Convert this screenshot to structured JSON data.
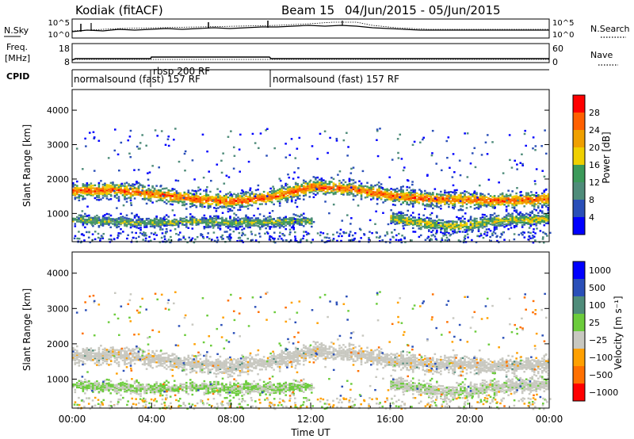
{
  "header": {
    "station": "Kodiak (fitACF)",
    "beam": "Beam 15",
    "dates": "04/Jun/2015 - 05/Jun/2015"
  },
  "nsky_panel": {
    "label": "N.Sky",
    "left_ticks": [
      "10^5",
      "10^0"
    ],
    "right_ticks": [
      "10^5",
      "10^0"
    ],
    "right_label": "N.Search"
  },
  "freq_panel": {
    "label_line1": "Freq.",
    "label_line2": "[MHz]",
    "left_ticks": [
      "18",
      "8"
    ],
    "right_ticks": [
      "60",
      "0"
    ],
    "right_label": "Nave"
  },
  "cpid_panel": {
    "label": "CPID",
    "segments": [
      {
        "text": "normalsound (fast) 157 RF",
        "start_hour": 0,
        "end_hour": 4
      },
      {
        "text": "rbsp 200 RF",
        "start_hour": 4,
        "end_hour": 10
      },
      {
        "text": "normalsound (fast) 157 RF",
        "start_hour": 10,
        "end_hour": 24
      }
    ]
  },
  "colors": {
    "power_scale": [
      "#0000ff",
      "#2a4fb8",
      "#4f8c7a",
      "#3c9a5a",
      "#f0d000",
      "#f0a000",
      "#ff6000",
      "#ff0000"
    ],
    "velocity_scale": [
      "#0000ff",
      "#2a4fb8",
      "#4f8c7a",
      "#6ccc3c",
      "#c8c8c0",
      "#ffa000",
      "#ff7000",
      "#ff0000"
    ]
  },
  "chart_data": [
    {
      "type": "heatmap",
      "panel": "power",
      "ylabel": "Slant Range [km]",
      "xlabel": "",
      "x_range_hours": [
        0,
        24
      ],
      "ylim": [
        180,
        4600
      ],
      "y_ticks": [
        1000,
        2000,
        3000,
        4000
      ],
      "colorbar": {
        "label": "Power [dB]",
        "ticks": [
          "28",
          "24",
          "20",
          "16",
          "12",
          "8",
          "4"
        ]
      },
      "bands": [
        {
          "name": "",
          "x": [
            0,
            2,
            4,
            6,
            8,
            10,
            12,
            14,
            16,
            18,
            20,
            22,
            24
          ],
          "center_km": [
            1680,
            1720,
            1600,
            1450,
            1380,
            1500,
            1800,
            1750,
            1550,
            1450,
            1420,
            1400,
            1450
          ],
          "width_km": 300,
          "intensity": 0.85
        },
        {
          "name": "",
          "x": [
            0,
            1,
            2,
            3,
            4,
            5,
            6,
            7,
            8,
            9,
            10,
            11,
            12
          ],
          "center_km": [
            850,
            820,
            800,
            780,
            760,
            760,
            800,
            780,
            760,
            780,
            780,
            800,
            820
          ],
          "width_km": 220,
          "intensity": 0.45
        },
        {
          "name": "",
          "x": [
            16,
            17,
            18,
            19,
            20,
            21,
            22,
            23,
            24
          ],
          "center_km": [
            900,
            800,
            720,
            650,
            700,
            800,
            850,
            850,
            900
          ],
          "width_km": 260,
          "intensity": 0.55
        }
      ]
    },
    {
      "type": "heatmap",
      "panel": "velocity",
      "ylabel": "Slant Range [km]",
      "xlabel": "Time UT",
      "x_range_hours": [
        0,
        24
      ],
      "x_ticks": [
        "00:00",
        "04:00",
        "08:00",
        "12:00",
        "16:00",
        "20:00",
        "00:00"
      ],
      "ylim": [
        180,
        4600
      ],
      "y_ticks": [
        1000,
        2000,
        3000,
        4000
      ],
      "colorbar": {
        "label": "Velocity [m s⁻¹]",
        "ticks": [
          "1000",
          "500",
          "100",
          "25",
          "−25",
          "−100",
          "−500",
          "−1000"
        ]
      }
    }
  ]
}
